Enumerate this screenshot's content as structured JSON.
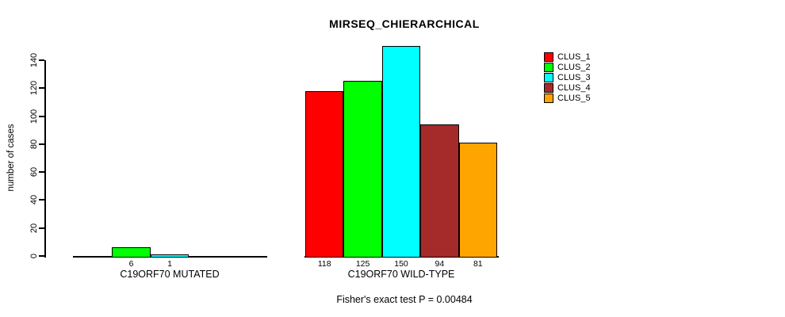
{
  "title": "MIRSEQ_CHIERARCHICAL",
  "y_axis": {
    "label": "number of cases",
    "ticks": [
      0,
      20,
      40,
      60,
      80,
      100,
      120,
      140
    ]
  },
  "footer": "Fisher's exact test P = 0.00484",
  "chart_data": {
    "type": "bar",
    "title": "MIRSEQ_CHIERARCHICAL",
    "xlabel": "",
    "ylabel": "number of cases",
    "categories": [
      "C19ORF70 MUTATED",
      "C19ORF70 WILD-TYPE"
    ],
    "series": [
      {
        "name": "CLUS_1",
        "color": "#FF0000",
        "values": [
          0,
          118
        ]
      },
      {
        "name": "CLUS_2",
        "color": "#00FF00",
        "values": [
          6,
          125
        ]
      },
      {
        "name": "CLUS_3",
        "color": "#00FFFF",
        "values": [
          1,
          150
        ]
      },
      {
        "name": "CLUS_4",
        "color": "#A52A2A",
        "values": [
          0,
          94
        ]
      },
      {
        "name": "CLUS_5",
        "color": "#FFA500",
        "values": [
          0,
          81
        ]
      }
    ],
    "ylim": [
      0,
      140
    ],
    "yticks": [
      0,
      20,
      40,
      60,
      80,
      100,
      120,
      140
    ],
    "bar_value_labels": true,
    "hide_zero_value_labels": true,
    "grid": false,
    "legend_position": "top-right",
    "annotation": "Fisher's exact test P = 0.00484"
  }
}
